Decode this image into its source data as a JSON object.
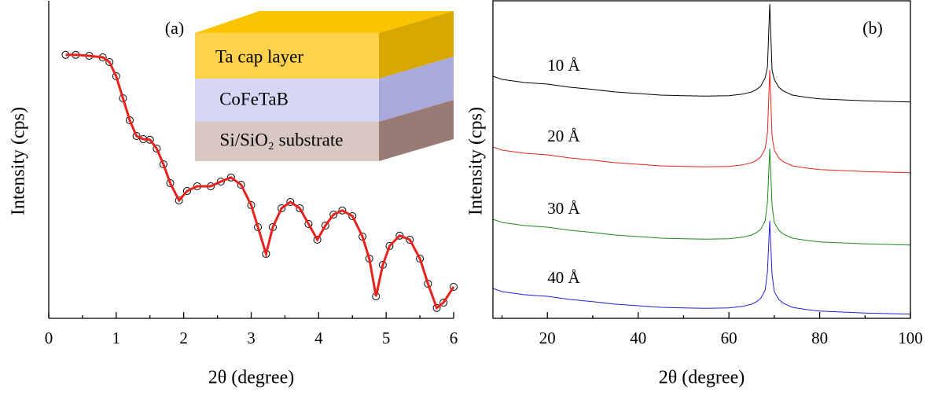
{
  "chart_data": [
    {
      "type": "line",
      "label": "(a)",
      "xlabel": "2θ (degree)",
      "ylabel": "Intensity (cps)",
      "frame": false,
      "xlim": [
        0,
        6
      ],
      "xticks": [
        0,
        1,
        2,
        3,
        4,
        5,
        6
      ],
      "xminorticks": [
        0.5,
        1.5,
        2.5,
        3.5,
        4.5,
        5.5
      ],
      "ylim": [
        0,
        100
      ],
      "inset_labels": [
        "Ta cap layer",
        "CoFeTaB",
        "Si/SiO₂ substrate"
      ],
      "x": [
        0.25,
        0.4,
        0.6,
        0.8,
        0.9,
        1.0,
        1.1,
        1.2,
        1.3,
        1.4,
        1.5,
        1.6,
        1.7,
        1.8,
        1.93,
        2.05,
        2.2,
        2.4,
        2.55,
        2.7,
        2.85,
        3.0,
        3.1,
        3.22,
        3.32,
        3.45,
        3.58,
        3.72,
        3.85,
        3.98,
        4.1,
        4.22,
        4.35,
        4.5,
        4.65,
        4.75,
        4.85,
        4.95,
        5.05,
        5.2,
        5.35,
        5.5,
        5.62,
        5.75,
        5.85,
        6.0
      ],
      "series": [
        {
          "color": "#000000",
          "marker": "circle",
          "values": [
            83.8,
            83.8,
            83.5,
            83,
            81.5,
            77,
            70,
            63,
            58,
            57,
            56.8,
            54,
            49,
            43,
            37.5,
            40.5,
            42,
            42,
            43.5,
            44.8,
            42.5,
            36,
            29,
            20.5,
            29,
            35,
            37,
            35,
            30,
            25,
            29.5,
            33,
            34.3,
            32.5,
            26,
            19,
            7,
            17,
            23,
            26.3,
            25,
            19,
            11,
            3.3,
            5,
            10
          ]
        },
        {
          "color": "#e8231d",
          "marker": "none",
          "values": [
            83.8,
            83.8,
            83.5,
            83,
            81.5,
            77,
            70,
            63,
            58,
            57,
            56.8,
            54,
            49,
            43,
            37.5,
            40.5,
            42,
            42,
            43.5,
            44.8,
            42.5,
            36,
            29,
            20.5,
            29,
            35,
            37,
            35,
            30,
            25,
            29.5,
            33,
            34.3,
            32.5,
            26,
            19,
            7,
            17,
            23,
            26.3,
            25,
            19,
            11,
            3.3,
            5,
            10
          ]
        }
      ]
    },
    {
      "type": "line",
      "label": "(b)",
      "xlabel": "2θ (degree)",
      "ylabel": "Intensity (cps)",
      "frame": true,
      "xlim": [
        8,
        100
      ],
      "xticks": [
        20,
        40,
        60,
        80,
        100
      ],
      "xminorticks": [
        10,
        30,
        50,
        70,
        90
      ],
      "ylim": [
        0,
        100
      ],
      "x": [
        8,
        10,
        15,
        20,
        25,
        30,
        35,
        40,
        45,
        50,
        55,
        60,
        63,
        65,
        66,
        67,
        68,
        68.5,
        69,
        69.5,
        70,
        71,
        72,
        74,
        77,
        80,
        85,
        90,
        95,
        100
      ],
      "series": [
        {
          "name": "10 Å",
          "color": "#000000",
          "values": [
            77,
            76,
            75,
            74.5,
            73.5,
            72.8,
            72,
            71.5,
            71,
            70.8,
            70.7,
            70.8,
            71.3,
            72,
            72.7,
            73.8,
            76.5,
            80,
            100,
            79,
            76,
            73.5,
            72.3,
            71,
            70.3,
            69.8,
            69.5,
            69.2,
            69,
            68.8
          ]
        },
        {
          "name": "20 Å",
          "color": "#e8231d",
          "values": [
            54.5,
            53.5,
            52.5,
            52,
            51,
            50.3,
            49.5,
            49,
            48.5,
            48.3,
            48.2,
            48.3,
            48.8,
            49.5,
            50.2,
            51.3,
            54,
            59,
            79,
            58,
            53.5,
            51,
            49.8,
            48.5,
            47.8,
            47.3,
            47,
            46.7,
            46.5,
            46.3
          ]
        },
        {
          "name": "30 Å",
          "color": "#1a8a1a",
          "values": [
            31.5,
            30.5,
            29.5,
            29,
            28,
            27.3,
            26.5,
            26,
            25.5,
            25.3,
            25.2,
            25.3,
            25.8,
            26.5,
            27.2,
            28.3,
            31,
            37,
            54,
            36,
            30.5,
            28,
            26.8,
            25.5,
            24.8,
            24.3,
            24,
            23.7,
            23.5,
            23.3
          ]
        },
        {
          "name": "40 Å",
          "color": "#1f1fd6",
          "values": [
            9.5,
            8.5,
            7.5,
            7,
            6,
            5.3,
            4.5,
            4,
            3.5,
            3.3,
            3.2,
            3.3,
            3.8,
            4.5,
            5.2,
            6.3,
            9,
            15,
            31,
            14,
            8.5,
            6,
            4.8,
            3.5,
            2.8,
            2.3,
            2,
            1.7,
            1.5,
            1.3
          ]
        }
      ]
    }
  ]
}
